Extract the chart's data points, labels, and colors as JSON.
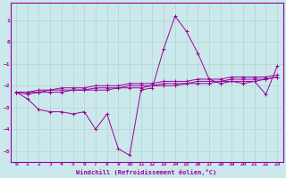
{
  "xlabel": "Windchill (Refroidissement éolien,°C)",
  "bg_color": "#cbe8ec",
  "grid_color": "#b0d8cc",
  "line_color": "#990099",
  "xlim": [
    -0.5,
    23.5
  ],
  "ylim": [
    -5.5,
    1.8
  ],
  "yticks": [
    1,
    0,
    -1,
    -2,
    -3,
    -4,
    -5
  ],
  "xticks": [
    0,
    1,
    2,
    3,
    4,
    5,
    6,
    7,
    8,
    9,
    10,
    11,
    12,
    13,
    14,
    15,
    16,
    17,
    18,
    19,
    20,
    21,
    22,
    23
  ],
  "y_main": [
    -2.3,
    -2.6,
    -3.1,
    -3.2,
    -3.2,
    -3.3,
    -3.2,
    -4.0,
    -3.3,
    -4.9,
    -5.2,
    -2.2,
    -2.1,
    -0.3,
    1.2,
    0.5,
    -0.5,
    -1.7,
    -1.9,
    -1.8,
    -1.9,
    -1.8,
    -2.4,
    -1.1
  ],
  "y_lin1": [
    -2.3,
    -2.3,
    -2.2,
    -2.2,
    -2.1,
    -2.1,
    -2.1,
    -2.0,
    -2.0,
    -2.0,
    -1.9,
    -1.9,
    -1.9,
    -1.8,
    -1.8,
    -1.8,
    -1.7,
    -1.7,
    -1.7,
    -1.6,
    -1.6,
    -1.6,
    -1.6,
    -1.5
  ],
  "y_lin2": [
    -2.3,
    -2.3,
    -2.3,
    -2.2,
    -2.2,
    -2.2,
    -2.2,
    -2.1,
    -2.1,
    -2.1,
    -2.0,
    -2.0,
    -2.0,
    -1.9,
    -1.9,
    -1.9,
    -1.8,
    -1.8,
    -1.8,
    -1.7,
    -1.7,
    -1.7,
    -1.7,
    -1.6
  ],
  "y_lin3": [
    -2.3,
    -2.4,
    -2.3,
    -2.3,
    -2.3,
    -2.2,
    -2.2,
    -2.2,
    -2.2,
    -2.1,
    -2.1,
    -2.1,
    -2.0,
    -2.0,
    -2.0,
    -1.9,
    -1.9,
    -1.9,
    -1.8,
    -1.8,
    -1.8,
    -1.8,
    -1.7,
    -1.6
  ]
}
